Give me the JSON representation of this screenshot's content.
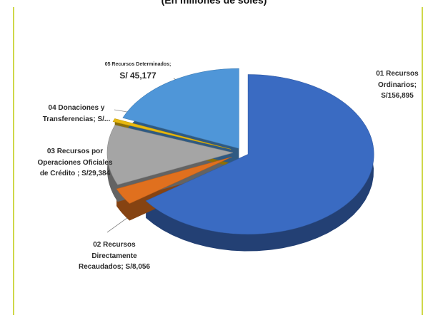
{
  "chart_data": {
    "type": "pie",
    "title": "(En millones de soles)",
    "slices": [
      {
        "name": "01 Recursos Ordinarios",
        "value": 156895,
        "label": "01 Recursos Ordinarios; S/156,895",
        "color": "#3a6bc2"
      },
      {
        "name": "02 Recursos Directamente Recaudados",
        "value": 8056,
        "label": "02 Recursos Directamente Recaudados; S/8,056",
        "color": "#e0701e"
      },
      {
        "name": "03 Recursos por Operaciones Oficiales de Crédito",
        "value": 29384,
        "label": "03 Recursos por Operaciones Oficiales de Crédito ; S/29,384",
        "color": "#a5a5a5"
      },
      {
        "name": "04 Donaciones y Transferencias",
        "value": 1500,
        "label": "04 Donaciones y Transferencias; S/...",
        "color": "#e8b90f"
      },
      {
        "name": "05 Recursos Determinados",
        "value": 45177,
        "label": "05 Recursos Determinados; S/ 45,177",
        "color": "#4f96d8"
      }
    ]
  },
  "labels": {
    "ro": [
      "01 Recursos",
      "Ordinarios; S/156,895"
    ],
    "rdr": [
      "02 Recursos",
      "Directamente",
      "Recaudados; S/8,056"
    ],
    "rooc": [
      "03 Recursos por",
      "Operaciones Oficiales",
      "de Crédito ; S/29,384"
    ],
    "dt": [
      "04 Donaciones y",
      "Transferencias; S/..."
    ],
    "rd": [
      "05 Recursos Determinados;",
      "S/ 45,177"
    ]
  }
}
